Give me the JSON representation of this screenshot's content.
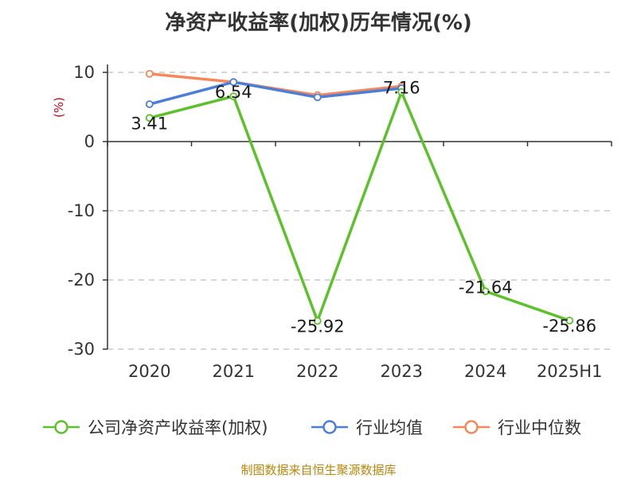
{
  "title": "净资产收益率(加权)历年情况(%)",
  "source": "制图数据来自恒生聚源数据库",
  "chart_data": {
    "type": "line",
    "title": "净资产收益率(加权)历年情况(%)",
    "ylabel": "(%)",
    "categories": [
      "2020",
      "2021",
      "2022",
      "2023",
      "2024",
      "2025H1"
    ],
    "ylim": [
      -30,
      10
    ],
    "yticks": [
      10,
      0,
      -10,
      -20,
      -30
    ],
    "grid": true,
    "legend_position": "bottom",
    "series": [
      {
        "name": "公司净资产收益率(加权)",
        "color": "#5cc12a",
        "values": [
          3.41,
          6.54,
          -25.92,
          7.16,
          -21.64,
          -25.86
        ],
        "labels": [
          "3.41",
          "6.54",
          "-25.92",
          "7.16",
          "-21.64",
          "-25.86"
        ]
      },
      {
        "name": "行业均值",
        "color": "#4a7fd8",
        "values": [
          5.4,
          8.6,
          6.4,
          7.7,
          null,
          null
        ]
      },
      {
        "name": "行业中位数",
        "color": "#f5875a",
        "values": [
          9.8,
          8.6,
          6.7,
          8.0,
          null,
          null
        ]
      }
    ]
  }
}
